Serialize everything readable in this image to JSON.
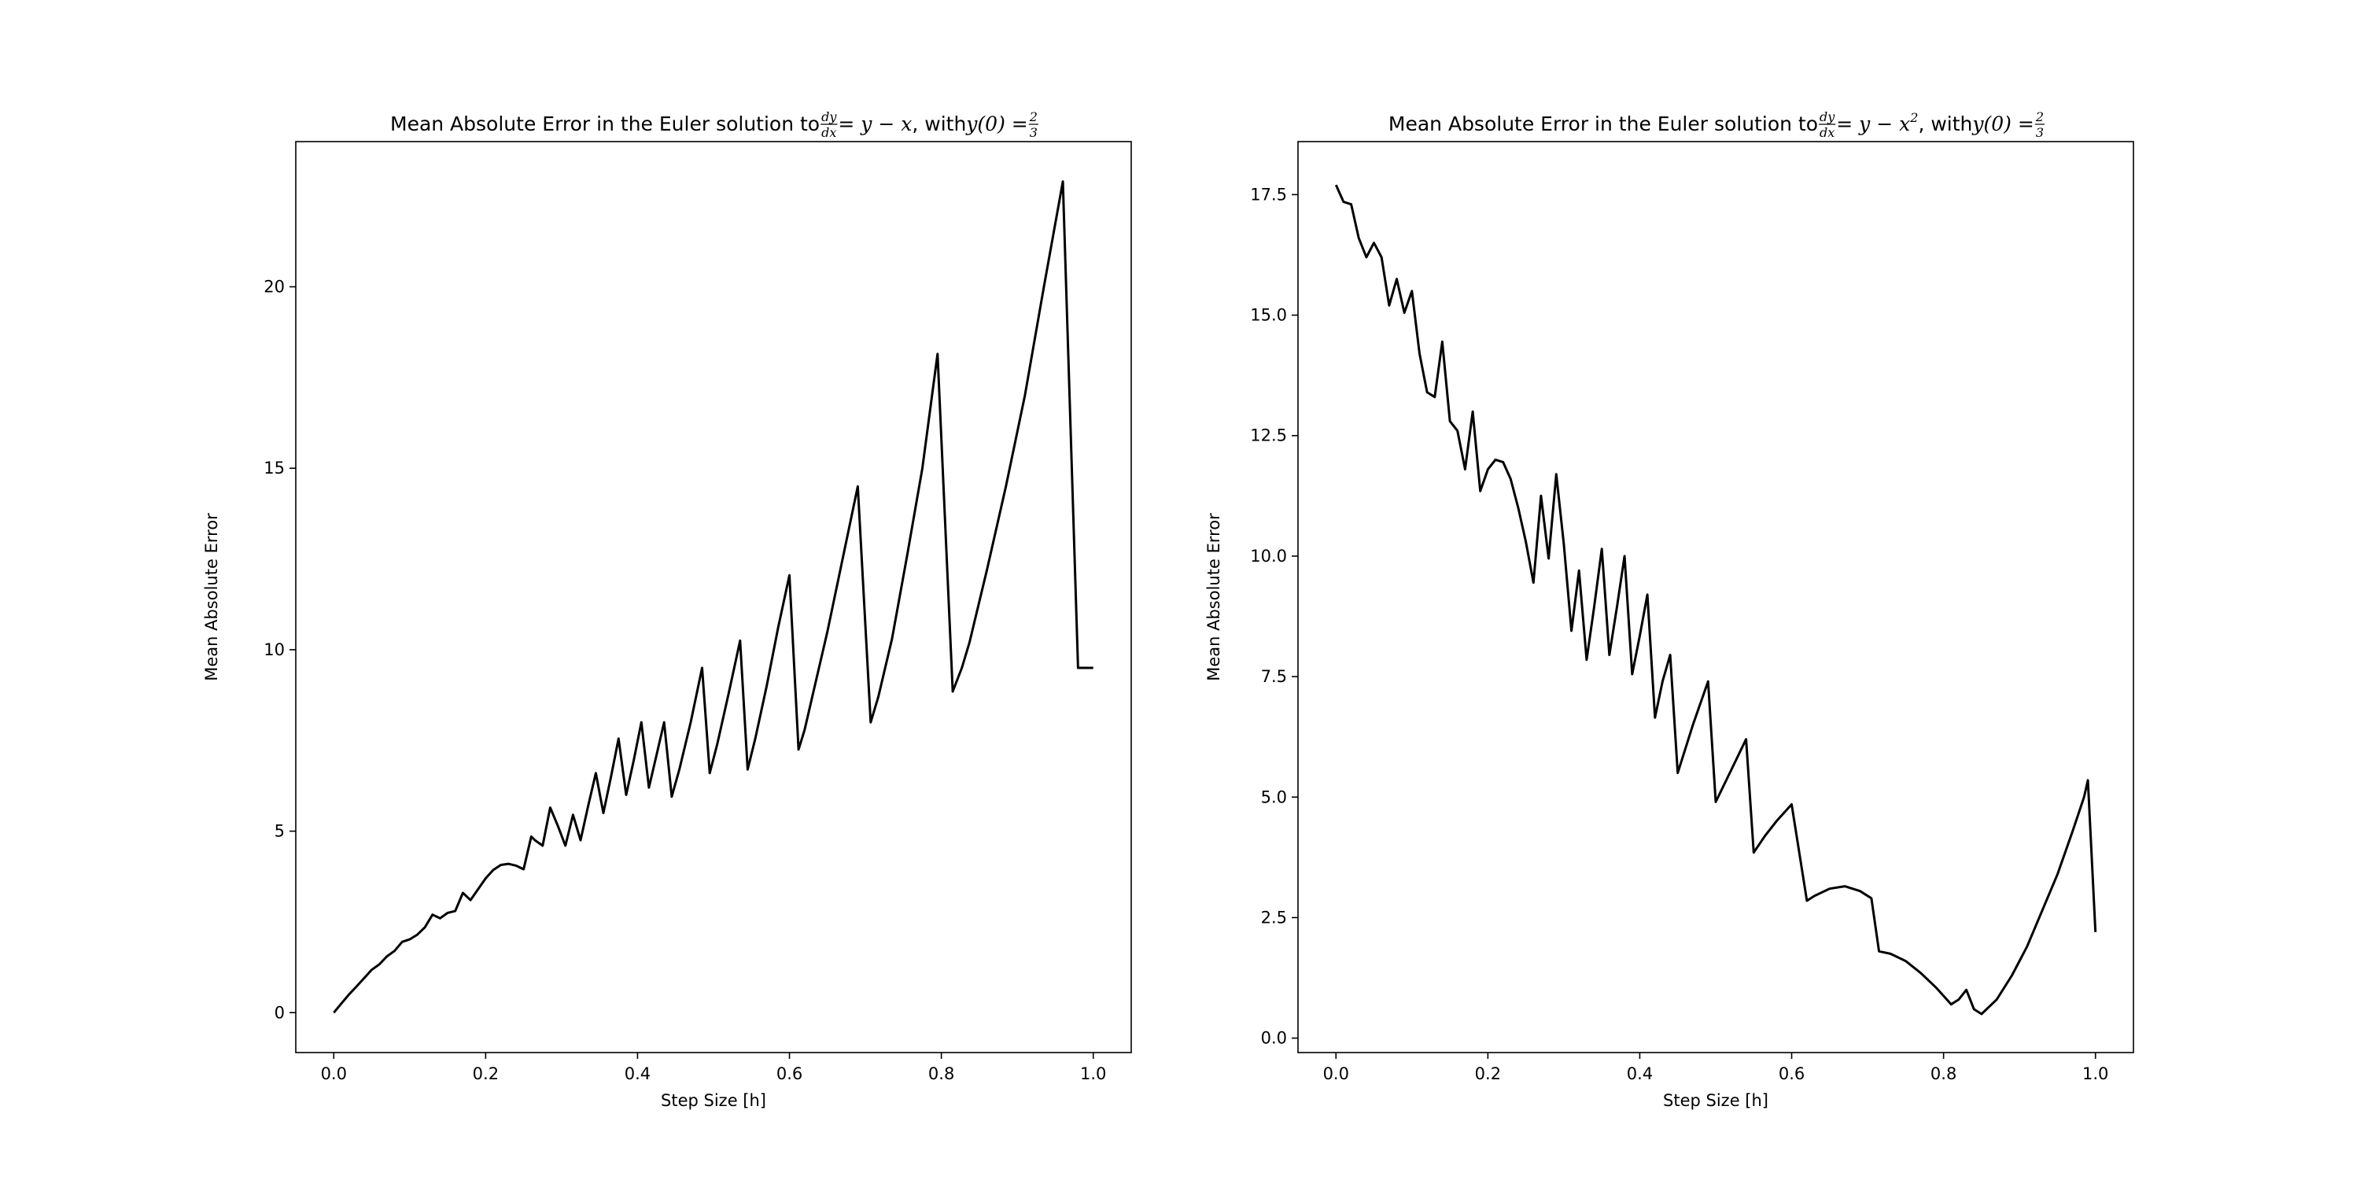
{
  "chart_data": [
    {
      "type": "line",
      "title": {
        "prefix": "Mean Absolute Error in the Euler solution to ",
        "frac_num": "dy",
        "frac_den": "dx",
        "equation": " = y − x",
        "equation_sup": "",
        "middle": ", with ",
        "condition": "y(0) = ",
        "cond_num": "2",
        "cond_den": "3"
      },
      "xlabel": "Step Size [h]",
      "ylabel": "Mean Absolute Error",
      "xlim": [
        -0.05,
        1.05
      ],
      "ylim": [
        -1.1,
        24.0
      ],
      "xticks": [
        0.0,
        0.2,
        0.4,
        0.6,
        0.8,
        1.0
      ],
      "xtick_labels": [
        "0.0",
        "0.2",
        "0.4",
        "0.6",
        "0.8",
        "1.0"
      ],
      "yticks": [
        0,
        5,
        10,
        15,
        20
      ],
      "ytick_labels": [
        "0",
        "5",
        "10",
        "15",
        "20"
      ],
      "grid": false,
      "series": [
        {
          "color": "#000000",
          "x": [
            0.0,
            0.01,
            0.02,
            0.03,
            0.04,
            0.05,
            0.06,
            0.07,
            0.08,
            0.09,
            0.1,
            0.11,
            0.12,
            0.13,
            0.14,
            0.15,
            0.16,
            0.17,
            0.18,
            0.19,
            0.2,
            0.21,
            0.22,
            0.23,
            0.24,
            0.25,
            0.26,
            0.265,
            0.275,
            0.285,
            0.295,
            0.305,
            0.315,
            0.325,
            0.335,
            0.345,
            0.355,
            0.365,
            0.375,
            0.385,
            0.395,
            0.405,
            0.415,
            0.425,
            0.435,
            0.445,
            0.455,
            0.47,
            0.485,
            0.495,
            0.505,
            0.52,
            0.535,
            0.545,
            0.555,
            0.57,
            0.585,
            0.6,
            0.612,
            0.62,
            0.63,
            0.65,
            0.67,
            0.69,
            0.707,
            0.717,
            0.735,
            0.755,
            0.775,
            0.795,
            0.815,
            0.827,
            0.837,
            0.86,
            0.885,
            0.91,
            0.935,
            0.96,
            0.98,
            0.99,
            1.0
          ],
          "y": [
            0.0,
            0.25,
            0.5,
            0.72,
            0.95,
            1.18,
            1.33,
            1.55,
            1.7,
            1.95,
            2.02,
            2.15,
            2.35,
            2.7,
            2.6,
            2.75,
            2.8,
            3.3,
            3.1,
            3.4,
            3.7,
            3.93,
            4.07,
            4.1,
            4.05,
            3.95,
            4.85,
            4.75,
            4.6,
            5.65,
            5.15,
            4.6,
            5.45,
            4.75,
            5.7,
            6.6,
            5.5,
            6.5,
            7.55,
            6.0,
            6.95,
            8.0,
            6.2,
            7.1,
            8.0,
            5.95,
            6.7,
            8.0,
            9.5,
            6.6,
            7.4,
            8.8,
            10.25,
            6.7,
            7.55,
            9.0,
            10.6,
            12.05,
            7.25,
            7.8,
            8.7,
            10.5,
            12.5,
            14.5,
            8.0,
            8.7,
            10.3,
            12.6,
            15.0,
            18.15,
            8.85,
            9.5,
            10.2,
            12.2,
            14.5,
            17.0,
            20.0,
            22.9,
            9.5,
            9.5,
            9.5
          ]
        }
      ]
    },
    {
      "type": "line",
      "title": {
        "prefix": "Mean Absolute Error in the Euler solution to ",
        "frac_num": "dy",
        "frac_den": "dx",
        "equation": " = y − x",
        "equation_sup": "2",
        "middle": ", with ",
        "condition": "y(0) = ",
        "cond_num": "2",
        "cond_den": "3"
      },
      "xlabel": "Step Size [h]",
      "ylabel": "Mean Absolute Error",
      "xlim": [
        -0.05,
        1.05
      ],
      "ylim": [
        -0.3,
        18.6
      ],
      "xticks": [
        0.0,
        0.2,
        0.4,
        0.6,
        0.8,
        1.0
      ],
      "xtick_labels": [
        "0.0",
        "0.2",
        "0.4",
        "0.6",
        "0.8",
        "1.0"
      ],
      "yticks": [
        0.0,
        2.5,
        5.0,
        7.5,
        10.0,
        12.5,
        15.0,
        17.5
      ],
      "ytick_labels": [
        "0.0",
        "2.5",
        "5.0",
        "7.5",
        "10.0",
        "12.5",
        "15.0",
        "17.5"
      ],
      "grid": false,
      "series": [
        {
          "color": "#000000",
          "x": [
            0.0,
            0.01,
            0.02,
            0.03,
            0.04,
            0.05,
            0.06,
            0.07,
            0.08,
            0.09,
            0.1,
            0.11,
            0.12,
            0.13,
            0.14,
            0.15,
            0.16,
            0.17,
            0.18,
            0.19,
            0.2,
            0.21,
            0.22,
            0.23,
            0.24,
            0.25,
            0.26,
            0.27,
            0.28,
            0.29,
            0.3,
            0.31,
            0.32,
            0.33,
            0.34,
            0.35,
            0.36,
            0.37,
            0.38,
            0.39,
            0.4,
            0.41,
            0.42,
            0.43,
            0.44,
            0.45,
            0.47,
            0.49,
            0.5,
            0.52,
            0.54,
            0.55,
            0.565,
            0.58,
            0.6,
            0.62,
            0.63,
            0.65,
            0.67,
            0.69,
            0.705,
            0.715,
            0.73,
            0.75,
            0.77,
            0.79,
            0.81,
            0.82,
            0.83,
            0.84,
            0.85,
            0.87,
            0.89,
            0.91,
            0.93,
            0.95,
            0.97,
            0.985,
            0.99,
            1.0
          ],
          "y": [
            17.7,
            17.35,
            17.3,
            16.6,
            16.2,
            16.5,
            16.2,
            15.2,
            15.75,
            15.05,
            15.5,
            14.2,
            13.4,
            13.3,
            14.45,
            12.8,
            12.6,
            11.8,
            13.0,
            11.35,
            11.8,
            12.0,
            11.95,
            11.6,
            11.0,
            10.3,
            9.45,
            11.25,
            9.95,
            11.7,
            10.25,
            8.45,
            9.7,
            7.85,
            8.95,
            10.15,
            7.95,
            8.95,
            10.0,
            7.55,
            8.35,
            9.2,
            6.65,
            7.4,
            7.95,
            5.5,
            6.5,
            7.4,
            4.9,
            5.55,
            6.2,
            3.85,
            4.2,
            4.5,
            4.85,
            2.85,
            2.95,
            3.1,
            3.15,
            3.05,
            2.9,
            1.8,
            1.75,
            1.6,
            1.35,
            1.05,
            0.7,
            0.8,
            1.0,
            0.6,
            0.5,
            0.8,
            1.3,
            1.9,
            2.65,
            3.4,
            4.3,
            5.0,
            5.35,
            2.2
          ]
        }
      ]
    }
  ]
}
